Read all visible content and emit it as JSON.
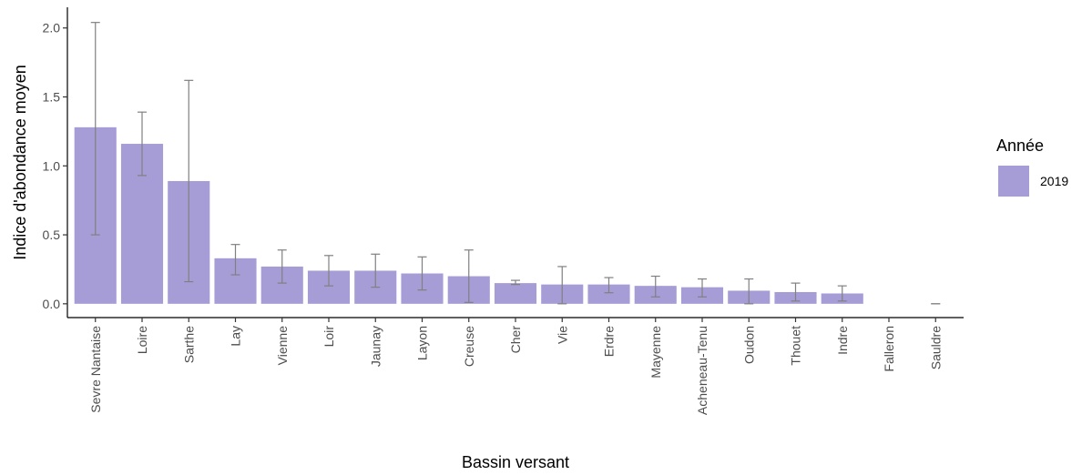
{
  "chart_data": {
    "type": "bar",
    "title": "",
    "xlabel": "Bassin versant",
    "ylabel": "Indice d'abondance moyen",
    "ylim": [
      -0.1,
      2.15
    ],
    "yticks": [
      0.0,
      0.5,
      1.0,
      1.5,
      2.0
    ],
    "ytick_labels": [
      "0.0",
      "0.5",
      "1.0",
      "1.5",
      "2.0"
    ],
    "grid": false,
    "legend": {
      "title": "Année",
      "placement": "right"
    },
    "categories": [
      "Sevre Nantaise",
      "Loire",
      "Sarthe",
      "Lay",
      "Vienne",
      "Loir",
      "Jaunay",
      "Layon",
      "Creuse",
      "Cher",
      "Vie",
      "Erdre",
      "Mayenne",
      "Acheneau-Tenu",
      "Oudon",
      "Thouet",
      "Indre",
      "Falleron",
      "Sauldre"
    ],
    "series": [
      {
        "name": "2019",
        "color": "#a79dd6",
        "values": [
          1.28,
          1.16,
          0.89,
          0.33,
          0.27,
          0.24,
          0.24,
          0.22,
          0.2,
          0.15,
          0.14,
          0.14,
          0.13,
          0.12,
          0.095,
          0.085,
          0.075,
          0.0,
          0.0
        ],
        "error_low": [
          0.5,
          0.93,
          0.16,
          0.21,
          0.15,
          0.13,
          0.12,
          0.1,
          0.01,
          0.14,
          0.0,
          0.08,
          0.05,
          0.05,
          0.0,
          0.02,
          0.02,
          null,
          0.0
        ],
        "error_high": [
          2.04,
          1.39,
          1.62,
          0.43,
          0.39,
          0.35,
          0.36,
          0.34,
          0.39,
          0.17,
          0.27,
          0.19,
          0.2,
          0.18,
          0.18,
          0.15,
          0.13,
          null,
          0.0
        ]
      }
    ],
    "errorbar_color": "#808080"
  }
}
